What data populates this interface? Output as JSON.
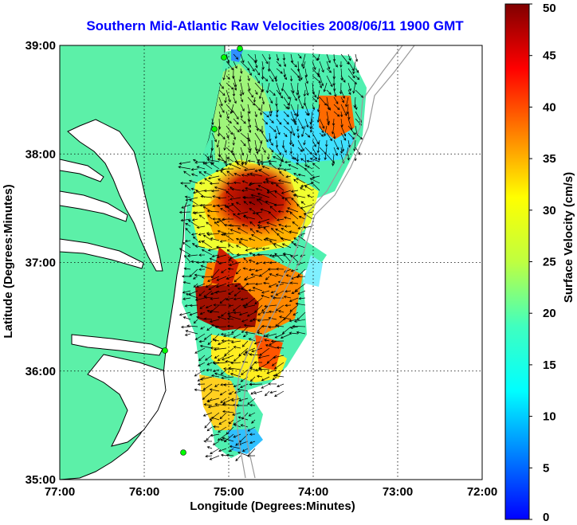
{
  "map": {
    "title": "Southern Mid-Atlantic Raw Velocities 2008/06/11 1900 GMT",
    "xlabel": "Longitude (Degrees:Minutes)",
    "ylabel": "Latitude (Degrees:Minutes)",
    "x_ticks": [
      "77:00",
      "76:00",
      "75:00",
      "74:00",
      "73:00",
      "72:00"
    ],
    "y_ticks": [
      "39:00",
      "38:00",
      "37:00",
      "36:00",
      "35:00"
    ],
    "lon_range": [
      -77,
      -72
    ],
    "lat_range": [
      35,
      39
    ],
    "grid": "dotted",
    "land_color": "#5cf0a8",
    "site_marker_color": "#00ff00",
    "colorbar": {
      "label": "Surface Velocity (cm/s)",
      "ticks": [
        "0",
        "5",
        "10",
        "15",
        "20",
        "25",
        "30",
        "35",
        "40",
        "45",
        "50"
      ],
      "range": [
        0,
        50
      ],
      "colormap": "jet"
    }
  }
}
